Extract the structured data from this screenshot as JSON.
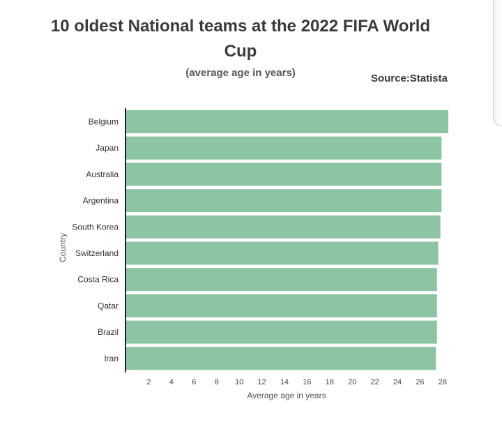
{
  "header": {
    "title": "10 oldest National teams at the 2022 FIFA World Cup",
    "subtitle": "(average age in years)",
    "source": "Source:Statista"
  },
  "chart_data": {
    "type": "bar",
    "orientation": "horizontal",
    "title": "10 oldest National teams at the 2022 FIFA World Cup",
    "subtitle": "(average age in years)",
    "xlabel": "Average age in years",
    "ylabel": "Country",
    "categories": [
      "Belgium",
      "Japan",
      "Australia",
      "Argentina",
      "South Korea",
      "Switzerland",
      "Costa Rica",
      "Qatar",
      "Brazil",
      "Iran"
    ],
    "values": [
      28.5,
      27.9,
      27.9,
      27.9,
      27.8,
      27.6,
      27.5,
      27.5,
      27.5,
      27.4
    ],
    "xlim": [
      0,
      28.5
    ],
    "xticks": [
      2,
      4,
      6,
      8,
      10,
      12,
      14,
      16,
      18,
      20,
      22,
      24,
      26,
      28
    ],
    "colors": {
      "bar": "#8cc4a4",
      "axis": "#222222"
    },
    "grid": false,
    "legend": "none"
  }
}
